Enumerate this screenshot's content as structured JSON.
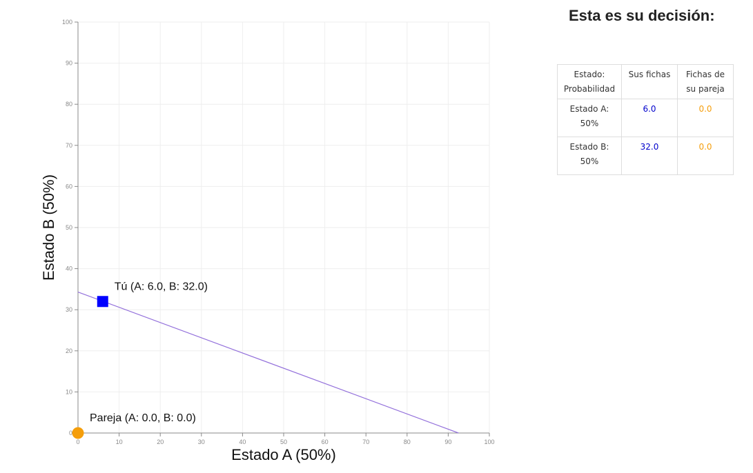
{
  "chart_data": {
    "type": "scatter",
    "xlabel": "Estado A (50%)",
    "ylabel": "Estado B (50%)",
    "xlim": [
      0,
      100
    ],
    "ylim": [
      0,
      100
    ],
    "xticks": [
      "0",
      "10",
      "20",
      "30",
      "40",
      "50",
      "60",
      "70",
      "80",
      "90",
      "100"
    ],
    "yticks": [
      "0",
      "10",
      "20",
      "30",
      "40",
      "50",
      "60",
      "70",
      "80",
      "90",
      "100"
    ],
    "grid": true,
    "budget_line": {
      "x": [
        0,
        92.5
      ],
      "y": [
        34.3,
        0
      ],
      "color": "#9370db"
    },
    "points": [
      {
        "label": "Tú (A: 6.0, B: 32.0)",
        "x": 6.0,
        "y": 32.0,
        "marker": "square",
        "color": "#0000ff"
      },
      {
        "label": "Pareja (A: 0.0, B: 0.0)",
        "x": 0.0,
        "y": 0.0,
        "marker": "circle",
        "color": "#f59e0b"
      }
    ]
  },
  "decision": {
    "title": "Esta es su decisión:",
    "headers": {
      "state": "Estado: Probabilidad",
      "self": "Sus fichas",
      "partner": "Fichas de su pareja"
    },
    "rows": [
      {
        "state": "Estado A: 50%",
        "self": "6.0",
        "partner": "0.0"
      },
      {
        "state": "Estado B: 50%",
        "self": "32.0",
        "partner": "0.0"
      }
    ]
  },
  "colors": {
    "self": "#0000cc",
    "partner": "#f59e0b",
    "grid": "#eeeeee",
    "axis": "#888888"
  }
}
